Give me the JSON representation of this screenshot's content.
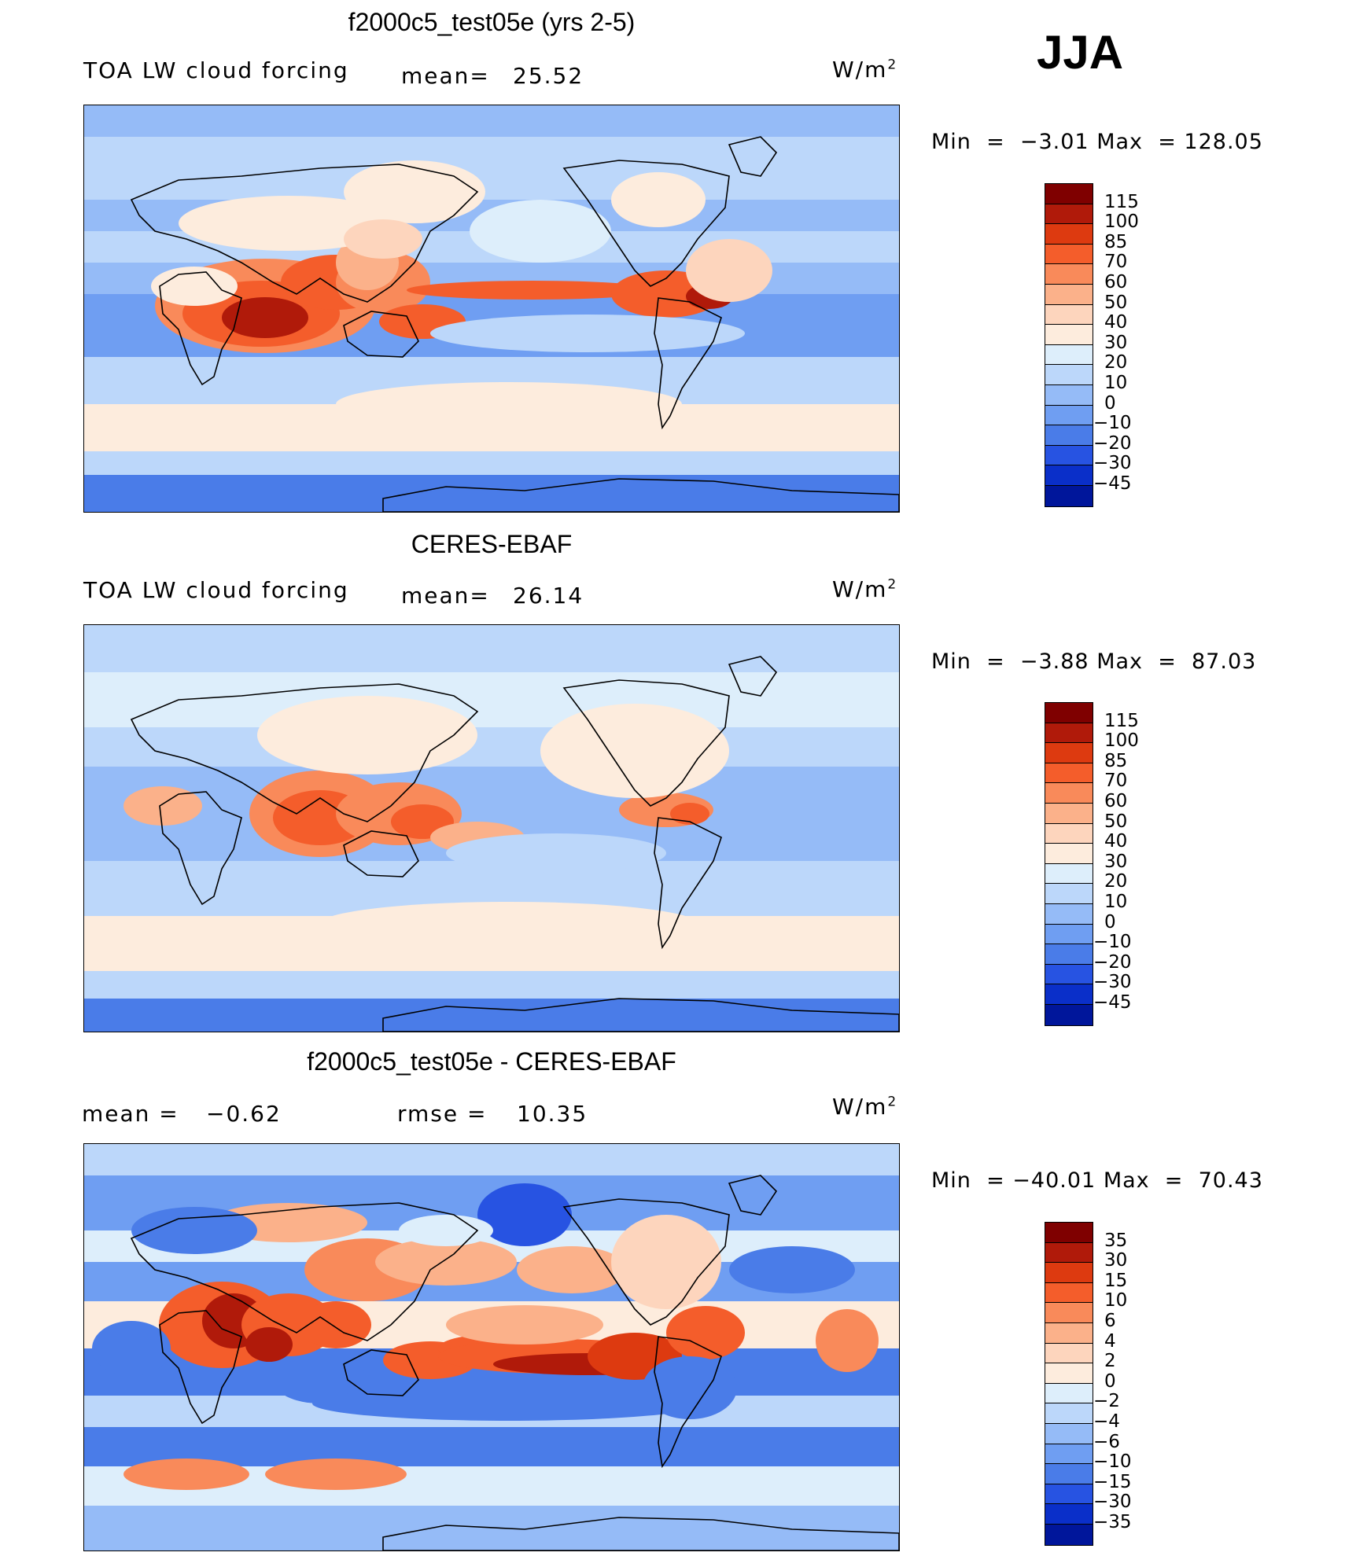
{
  "season": "JJA",
  "panels": [
    {
      "title": "f2000c5_test05e (yrs 2-5)",
      "variable": "TOA LW cloud forcing",
      "mean_label": "mean=",
      "mean_value": "25.52",
      "units_base": "W/m",
      "units_exp": "2",
      "min_label": "Min  =",
      "min_value": "−3.01",
      "max_label": "Max  =",
      "max_value": "128.05",
      "colorbar": {
        "labels": [
          "115",
          "100",
          "85",
          "70",
          "60",
          "50",
          "40",
          "30",
          "20",
          "10",
          "0",
          "−10",
          "−20",
          "−30",
          "−45"
        ],
        "colors": [
          "#7f0000",
          "#b01a0a",
          "#dd3a10",
          "#f45d2b",
          "#f98a5a",
          "#fbb18a",
          "#fdd5bd",
          "#fdecdd",
          "#ddeefb",
          "#bcd7fa",
          "#95bbf7",
          "#6f9ef2",
          "#4a7ce8",
          "#2753e2",
          "#0a2fc9",
          "#00169b"
        ]
      },
      "field": "model"
    },
    {
      "title": "CERES-EBAF",
      "variable": "TOA LW cloud forcing",
      "mean_label": "mean=",
      "mean_value": "26.14",
      "units_base": "W/m",
      "units_exp": "2",
      "min_label": "Min  =",
      "min_value": "−3.88",
      "max_label": "Max  =",
      "max_value": "87.03",
      "colorbar": {
        "labels": [
          "115",
          "100",
          "85",
          "70",
          "60",
          "50",
          "40",
          "30",
          "20",
          "10",
          "0",
          "−10",
          "−20",
          "−30",
          "−45"
        ],
        "colors": [
          "#7f0000",
          "#b01a0a",
          "#dd3a10",
          "#f45d2b",
          "#f98a5a",
          "#fbb18a",
          "#fdd5bd",
          "#fdecdd",
          "#ddeefb",
          "#bcd7fa",
          "#95bbf7",
          "#6f9ef2",
          "#4a7ce8",
          "#2753e2",
          "#0a2fc9",
          "#00169b"
        ]
      },
      "field": "obs"
    },
    {
      "title": "f2000c5_test05e - CERES-EBAF",
      "mean_label": "mean  =",
      "mean_value": "−0.62",
      "rmse_label": "rmse  =",
      "rmse_value": "10.35",
      "units_base": "W/m",
      "units_exp": "2",
      "min_label": "Min  =",
      "min_value": "−40.01",
      "max_label": "Max  =",
      "max_value": "70.43",
      "colorbar": {
        "labels": [
          "35",
          "30",
          "15",
          "10",
          "6",
          "4",
          "2",
          "0",
          "−2",
          "−4",
          "−6",
          "−10",
          "−15",
          "−30",
          "−35"
        ],
        "colors": [
          "#7f0000",
          "#b01a0a",
          "#dd3a10",
          "#f45d2b",
          "#f98a5a",
          "#fbb18a",
          "#fdd5bd",
          "#fdecdd",
          "#ddeefb",
          "#bcd7fa",
          "#95bbf7",
          "#6f9ef2",
          "#4a7ce8",
          "#2753e2",
          "#0a2fc9",
          "#00169b"
        ]
      },
      "field": "diff"
    }
  ]
}
